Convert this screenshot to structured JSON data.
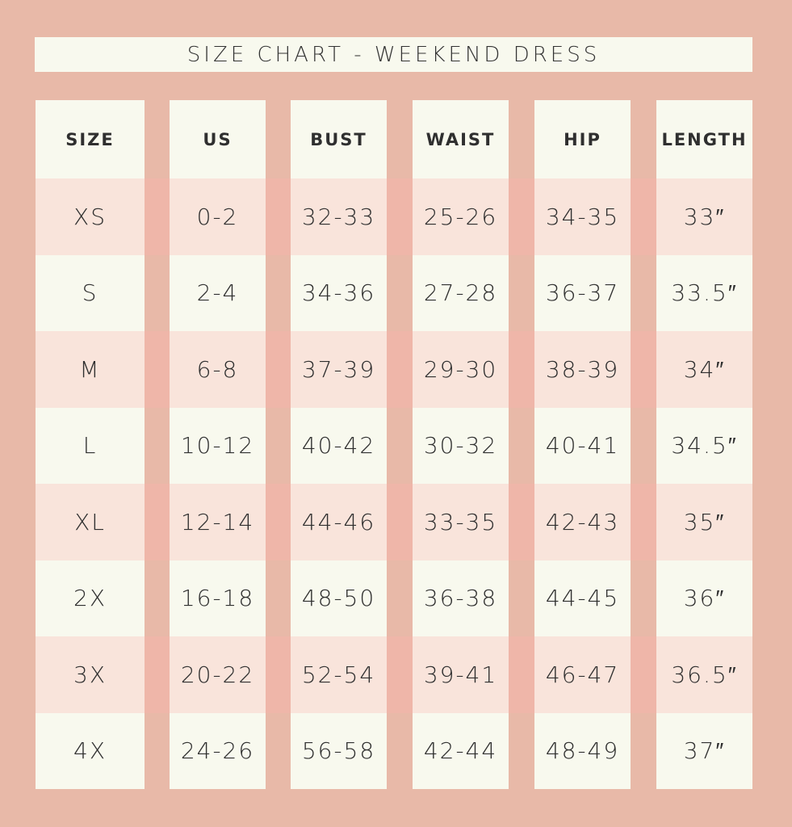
{
  "header": {
    "title": "SIZE CHART - WEEKEND DRESS"
  },
  "table": {
    "headers": [
      "SIZE",
      "US",
      "BUST",
      "WAIST",
      "HIP",
      "LENGTH"
    ],
    "rows": [
      [
        "XS",
        "0-2",
        "32-33",
        "25-26",
        "34-35",
        "33″"
      ],
      [
        "S",
        "2-4",
        "34-36",
        "27-28",
        "36-37",
        "33.5″"
      ],
      [
        "M",
        "6-8",
        "37-39",
        "29-30",
        "38-39",
        "34″"
      ],
      [
        "L",
        "10-12",
        "40-42",
        "30-32",
        "40-41",
        "34.5″"
      ],
      [
        "XL",
        "12-14",
        "44-46",
        "33-35",
        "42-43",
        "35″"
      ],
      [
        "2X",
        "16-18",
        "48-50",
        "36-38",
        "44-45",
        "36″"
      ],
      [
        "3X",
        "20-22",
        "52-54",
        "39-41",
        "46-47",
        "36.5″"
      ],
      [
        "4X",
        "24-26",
        "56-58",
        "42-44",
        "48-49",
        "37″"
      ]
    ]
  }
}
